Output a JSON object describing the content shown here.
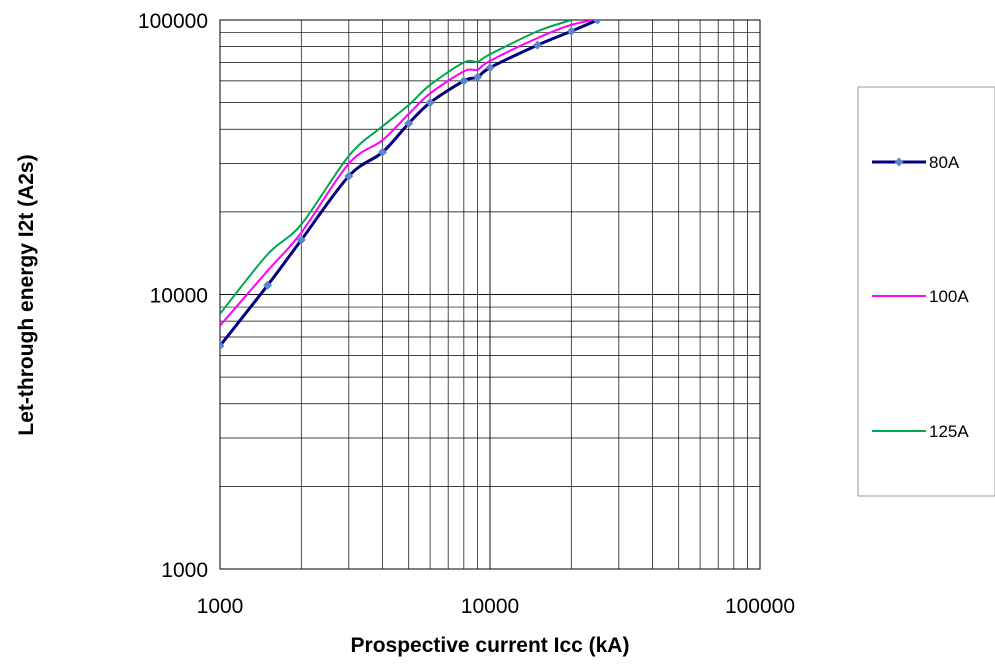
{
  "chart_data": {
    "type": "line",
    "title": "",
    "xlabel": "Prospective current Icc (kA)",
    "ylabel": "Let-through energy I2t (A2s)",
    "x_scale": "log",
    "y_scale": "log",
    "xlim": [
      1000,
      100000
    ],
    "ylim": [
      1000,
      100000
    ],
    "x_ticks": [
      "1000",
      "10000",
      "100000"
    ],
    "y_ticks": [
      "1000",
      "10000",
      "100000"
    ],
    "grid": true,
    "legend_position": "right",
    "series": [
      {
        "name": "80A",
        "color": "#000080",
        "marker": "diamond",
        "marker_color": "#5b87c8",
        "x": [
          1000,
          1500,
          2000,
          3000,
          4000,
          5000,
          6000,
          8000,
          9000,
          10000,
          15000,
          20000,
          25000
        ],
        "y": [
          6500,
          10800,
          15800,
          27000,
          33000,
          42000,
          50000,
          60000,
          62000,
          67000,
          81000,
          91000,
          100000
        ]
      },
      {
        "name": "100A",
        "color": "#ff00ff",
        "x": [
          1000,
          1500,
          2000,
          3000,
          4000,
          5000,
          6000,
          8000,
          9000,
          10000,
          15000,
          20000,
          27000
        ],
        "y": [
          7700,
          12200,
          16800,
          30000,
          36500,
          45500,
          54000,
          65000,
          66000,
          71000,
          86000,
          96000,
          102000
        ]
      },
      {
        "name": "125A",
        "color": "#00a650",
        "x": [
          1000,
          1500,
          2000,
          3000,
          4000,
          5000,
          6000,
          8000,
          9000,
          10000,
          15000,
          20000
        ],
        "y": [
          8500,
          14000,
          18000,
          32000,
          41000,
          49000,
          58000,
          70000,
          70500,
          75000,
          91000,
          100000
        ]
      }
    ]
  }
}
